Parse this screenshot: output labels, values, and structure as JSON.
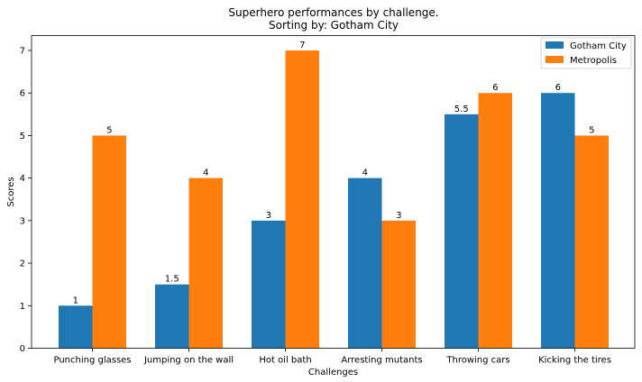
{
  "chart_data": {
    "type": "bar",
    "title": "Superhero performances by challenge.",
    "subtitle": "Sorting by: Gotham City",
    "xlabel": "Challenges",
    "ylabel": "Scores",
    "categories": [
      "Punching glasses",
      "Jumping on the wall",
      "Hot oil bath",
      "Arresting mutants",
      "Throwing cars",
      "Kicking the tires"
    ],
    "series": [
      {
        "name": "Gotham City",
        "color": "#1f77b4",
        "values": [
          1,
          1.5,
          3,
          4,
          5.5,
          6
        ],
        "labels": [
          "1",
          "1.5",
          "3",
          "4",
          "5.5",
          "6"
        ]
      },
      {
        "name": "Metropolis",
        "color": "#ff7f0e",
        "values": [
          5,
          4,
          7,
          3,
          6,
          5
        ],
        "labels": [
          "5",
          "4",
          "7",
          "3",
          "6",
          "5"
        ]
      }
    ],
    "ylim": [
      0,
      7.35
    ],
    "yticks": [
      0,
      1,
      2,
      3,
      4,
      5,
      6,
      7
    ],
    "ytick_labels": [
      "0",
      "1",
      "2",
      "3",
      "4",
      "5",
      "6",
      "7"
    ],
    "legend": "top-right",
    "grid": false
  }
}
